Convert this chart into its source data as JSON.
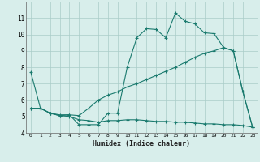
{
  "x": [
    0,
    1,
    2,
    3,
    4,
    5,
    6,
    7,
    8,
    9,
    10,
    11,
    12,
    13,
    14,
    15,
    16,
    17,
    18,
    19,
    20,
    21,
    22,
    23
  ],
  "line1": [
    7.7,
    5.5,
    5.2,
    5.1,
    5.1,
    4.5,
    4.5,
    4.5,
    5.2,
    5.2,
    8.0,
    9.8,
    10.35,
    10.3,
    9.8,
    11.3,
    10.8,
    10.65,
    10.1,
    10.05,
    9.2,
    9.0,
    6.5,
    4.35
  ],
  "line2": [
    5.5,
    5.5,
    5.2,
    5.05,
    5.1,
    5.05,
    5.5,
    6.0,
    6.3,
    6.5,
    6.8,
    7.0,
    7.25,
    7.5,
    7.75,
    8.0,
    8.3,
    8.6,
    8.85,
    9.0,
    9.2,
    9.0,
    6.5,
    4.35
  ],
  "line3": [
    5.5,
    5.5,
    5.2,
    5.05,
    5.0,
    4.8,
    4.75,
    4.65,
    4.75,
    4.75,
    4.8,
    4.8,
    4.75,
    4.7,
    4.7,
    4.65,
    4.65,
    4.6,
    4.55,
    4.55,
    4.5,
    4.5,
    4.45,
    4.35
  ],
  "line_color": "#1a7a6e",
  "bg_color": "#d8eeeb",
  "grid_color": "#aaccc8",
  "xlabel": "Humidex (Indice chaleur)",
  "ylim": [
    4,
    12
  ],
  "xlim_min": -0.5,
  "xlim_max": 23.5,
  "yticks": [
    4,
    5,
    6,
    7,
    8,
    9,
    10,
    11
  ],
  "xticks": [
    0,
    1,
    2,
    3,
    4,
    5,
    6,
    7,
    8,
    9,
    10,
    11,
    12,
    13,
    14,
    15,
    16,
    17,
    18,
    19,
    20,
    21,
    22,
    23
  ]
}
